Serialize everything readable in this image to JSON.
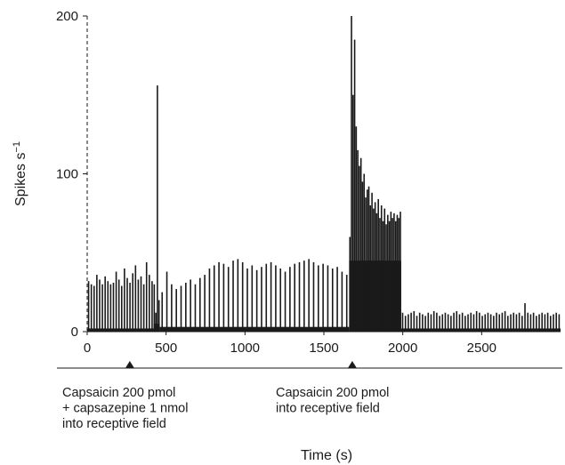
{
  "chart_data": {
    "type": "bar",
    "xlabel": "Time (s)",
    "ylabel": "Spikes s",
    "ylabel_superscript": "−1",
    "xlim": [
      0,
      3000
    ],
    "ylim": [
      0,
      200
    ],
    "x_ticks": [
      0,
      500,
      1000,
      1500,
      2000,
      2500
    ],
    "y_ticks": [
      0,
      100,
      200
    ],
    "grid": false,
    "bar_color": "#1a1a1a",
    "bin_width_s": 10,
    "segments": [
      {
        "x_start": 0,
        "x_end": 420,
        "period": 30,
        "peak_values": [
          32,
          30,
          29,
          36,
          33,
          30,
          35,
          32,
          30,
          31,
          38,
          33,
          29,
          40,
          34,
          31,
          37,
          42,
          33,
          35,
          30,
          44,
          36,
          32
        ],
        "baseline": 2
      },
      {
        "x_start": 420,
        "x_end": 460,
        "period": 10,
        "peak_values": [
          30,
          12,
          156,
          20
        ],
        "baseline": 5
      },
      {
        "x_start": 460,
        "x_end": 1660,
        "period": 30,
        "peak_values": [
          25,
          38,
          30,
          27,
          29,
          31,
          33,
          30,
          34,
          36,
          40,
          42,
          44,
          43,
          41,
          45,
          46,
          44,
          40,
          42,
          39,
          41,
          43,
          44,
          42,
          40,
          38,
          41,
          43,
          44,
          45,
          46,
          44,
          42,
          43,
          42,
          40,
          41,
          38,
          36
        ],
        "baseline": 3
      },
      {
        "x_start": 1660,
        "x_end": 1990,
        "period": 10,
        "peak_values": [
          60,
          200,
          150,
          185,
          130,
          115,
          105,
          110,
          95,
          100,
          85,
          90,
          92,
          80,
          88,
          78,
          82,
          75,
          84,
          72,
          80,
          70,
          78,
          68,
          74,
          70,
          76,
          72,
          75,
          70,
          74,
          72,
          76
        ],
        "baseline": 45
      },
      {
        "x_start": 1990,
        "x_end": 3000,
        "period": 18,
        "peak_values": [
          12,
          10,
          11,
          12,
          13,
          10,
          12,
          11,
          10,
          12,
          11,
          13,
          12,
          10,
          11,
          12,
          11,
          10,
          12,
          13,
          11,
          12,
          10,
          11,
          12,
          11,
          13,
          12,
          10,
          11,
          12,
          11,
          10,
          12,
          11,
          12,
          13,
          10,
          11,
          12,
          11,
          12,
          10,
          18,
          12,
          11,
          12,
          10,
          11,
          12,
          11,
          12,
          10,
          11,
          12,
          11
        ],
        "baseline": 2
      }
    ],
    "stimuli": [
      {
        "time_s": 270,
        "label_lines": [
          "Capsaicin 200 pmol",
          "+ capsazepine 1 nmol",
          "into receptive field"
        ]
      },
      {
        "time_s": 1680,
        "label_lines": [
          "Capsaicin 200 pmol",
          "into receptive field"
        ]
      }
    ]
  }
}
